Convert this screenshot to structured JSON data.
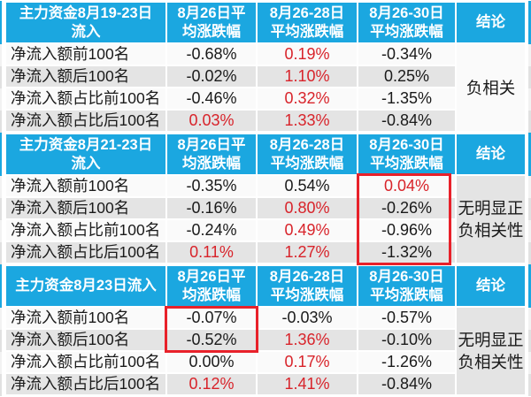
{
  "colors": {
    "header_blue": "#1ba7e0",
    "red_text": "#d8232a",
    "highlight_red": "#e8212a",
    "row_light": "#fafafa",
    "row_gray": "#e4e4e4"
  },
  "columns": [
    "8月26日平\n均涨跌幅",
    "8月26-28日\n平均涨跌幅",
    "8月26-30日\n平均涨跌幅",
    "结论"
  ],
  "chart_data": [
    {
      "type": "table",
      "title": "主力资金8月19-23日\n流入",
      "column_headers": [
        "主力资金8月19-23日流入",
        "8月26日平均涨跌幅",
        "8月26-28日平均涨跌幅",
        "8月26-30日平均涨跌幅",
        "结论"
      ],
      "rows": [
        {
          "label": "净流入额前100名",
          "values": [
            {
              "t": "-0.68%",
              "red": false
            },
            {
              "t": "0.19%",
              "red": true
            },
            {
              "t": "-0.34%",
              "red": false
            }
          ]
        },
        {
          "label": "净流入额后100名",
          "values": [
            {
              "t": "-0.02%",
              "red": false
            },
            {
              "t": "1.10%",
              "red": true
            },
            {
              "t": "0.25%",
              "red": false
            }
          ]
        },
        {
          "label": "净流入额占比前100名",
          "values": [
            {
              "t": "-0.46%",
              "red": false
            },
            {
              "t": "0.32%",
              "red": true
            },
            {
              "t": "-1.35%",
              "red": false
            }
          ]
        },
        {
          "label": "净流入额占比后100名",
          "values": [
            {
              "t": "0.03%",
              "red": true
            },
            {
              "t": "1.33%",
              "red": true
            },
            {
              "t": "-0.84%",
              "red": false
            }
          ]
        }
      ],
      "conclusion": "负相关"
    },
    {
      "type": "table",
      "title": "主力资金8月21-23日\n流入",
      "column_headers": [
        "主力资金8月21-23日流入",
        "8月26日平均涨跌幅",
        "8月26-28日平均涨跌幅",
        "8月26-30日平均涨跌幅",
        "结论"
      ],
      "rows": [
        {
          "label": "净流入额前100名",
          "values": [
            {
              "t": "-0.35%",
              "red": false
            },
            {
              "t": "0.54%",
              "red": false
            },
            {
              "t": "0.04%",
              "red": true
            }
          ]
        },
        {
          "label": "净流入额后100名",
          "values": [
            {
              "t": "-0.16%",
              "red": false
            },
            {
              "t": "0.80%",
              "red": true
            },
            {
              "t": "-0.26%",
              "red": false
            }
          ]
        },
        {
          "label": "净流入额占比前100名",
          "values": [
            {
              "t": "-0.24%",
              "red": false
            },
            {
              "t": "0.49%",
              "red": true
            },
            {
              "t": "-0.96%",
              "red": false
            }
          ]
        },
        {
          "label": "净流入额占比后100名",
          "values": [
            {
              "t": "0.11%",
              "red": true
            },
            {
              "t": "1.27%",
              "red": true
            },
            {
              "t": "-1.32%",
              "red": false
            }
          ]
        }
      ],
      "conclusion": "无明显正\n负相关性"
    },
    {
      "type": "table",
      "title": "主力资金8月23日流入",
      "column_headers": [
        "主力资金8月23日流入",
        "8月26日平均涨跌幅",
        "8月26-28日平均涨跌幅",
        "8月26-30日平均涨跌幅",
        "结论"
      ],
      "rows": [
        {
          "label": "净流入额前100名",
          "values": [
            {
              "t": "-0.07%",
              "red": false
            },
            {
              "t": "-0.03%",
              "red": false
            },
            {
              "t": "-0.57%",
              "red": false
            }
          ]
        },
        {
          "label": "净流入额后100名",
          "values": [
            {
              "t": "-0.52%",
              "red": false
            },
            {
              "t": "1.36%",
              "red": true
            },
            {
              "t": "-0.10%",
              "red": false
            }
          ]
        },
        {
          "label": "净流入额占比前100名",
          "values": [
            {
              "t": "0.00%",
              "red": false
            },
            {
              "t": "0.17%",
              "red": true
            },
            {
              "t": "-1.26%",
              "red": false
            }
          ]
        },
        {
          "label": "净流入额占比后100名",
          "values": [
            {
              "t": "0.12%",
              "red": true
            },
            {
              "t": "1.41%",
              "red": true
            },
            {
              "t": "-0.84%",
              "red": false
            }
          ]
        }
      ],
      "conclusion": "无明显正\n负相关性"
    }
  ],
  "annotations": [
    {
      "type": "red-box",
      "section_index": 1,
      "column": "8月26-30日平均涨跌幅",
      "rows": [
        0,
        1,
        2,
        3
      ]
    },
    {
      "type": "red-box",
      "section_index": 2,
      "column": "8月26日平均涨跌幅",
      "rows": [
        0,
        1
      ]
    }
  ]
}
